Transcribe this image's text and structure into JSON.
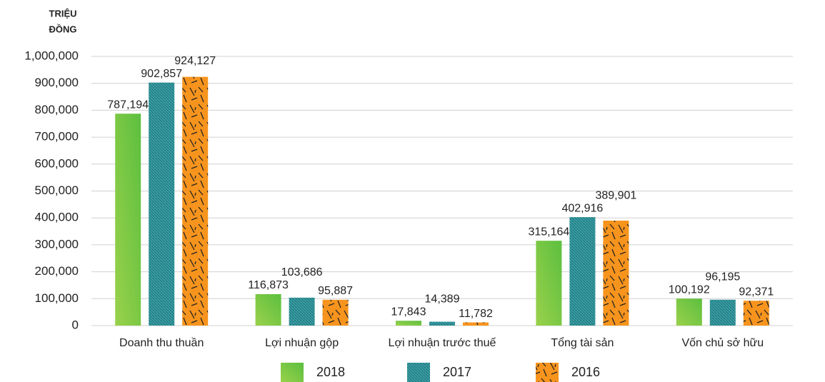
{
  "chart_data": {
    "type": "bar",
    "y_label": [
      "TRIỆU",
      "ĐỒNG"
    ],
    "categories": [
      "Doanh thu thuần",
      "Lợi nhuận gộp",
      "Lợi nhuận trước thuế",
      "Tổng tài sản",
      "Vốn chủ sở hữu"
    ],
    "series": [
      {
        "name": "2018",
        "color": "#5cbf3f",
        "values": [
          787194,
          116873,
          17843,
          315164,
          100192
        ],
        "value_labels": [
          "787,194",
          "116,873",
          "17,843",
          "315,164",
          "100,192"
        ]
      },
      {
        "name": "2017",
        "color": "#3a9fa6",
        "values": [
          902857,
          103686,
          14389,
          402916,
          96195
        ],
        "value_labels": [
          "902,857",
          "103,686",
          "14,389",
          "402,916",
          "96,195"
        ]
      },
      {
        "name": "2016",
        "color": "#f7941d",
        "values": [
          924127,
          95887,
          11782,
          389901,
          92371
        ],
        "value_labels": [
          "924,127",
          "95,887",
          "11,782",
          "389,901",
          "92,371"
        ]
      }
    ],
    "ylim": [
      0,
      1000000
    ],
    "yticks": [
      0,
      {
        "value": 100000,
        "label": "100,000"
      },
      {
        "value": 200000,
        "label": "200,000"
      },
      {
        "value": 300000,
        "label": "300,000"
      },
      {
        "value": 400000,
        "label": "400,000"
      },
      {
        "value": 500000,
        "label": "500,000"
      },
      {
        "value": 600000,
        "label": "600,000"
      },
      {
        "value": 700000,
        "label": "700,000"
      },
      {
        "value": 800000,
        "label": "800,000"
      },
      {
        "value": 900000,
        "label": "900,000"
      },
      {
        "value": 1000000,
        "label": "1,000,000"
      }
    ],
    "grid": true
  }
}
